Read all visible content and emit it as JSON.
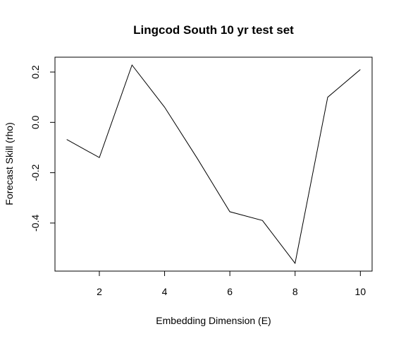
{
  "chart_data": {
    "type": "line",
    "title": "Lingcod South 10 yr test set",
    "xlabel": "Embedding Dimension (E)",
    "ylabel": "Forecast Skill (rho)",
    "x": [
      1,
      2,
      3,
      4,
      5,
      6,
      7,
      8,
      9,
      10
    ],
    "series": [
      {
        "values": [
          -0.068,
          -0.14,
          0.228,
          0.06,
          -0.143,
          -0.355,
          -0.39,
          -0.56,
          0.1,
          0.21
        ]
      }
    ],
    "xticks": [
      2,
      4,
      6,
      8,
      10
    ],
    "yticks": [
      -0.4,
      -0.2,
      0.0,
      0.2
    ],
    "ytick_labels": [
      "-0.4",
      "-0.2",
      "0.0",
      "0.2"
    ],
    "xlim": [
      0.64,
      10.36
    ],
    "ylim": [
      -0.591,
      0.259
    ],
    "grid": false,
    "line_color": "#000000"
  }
}
